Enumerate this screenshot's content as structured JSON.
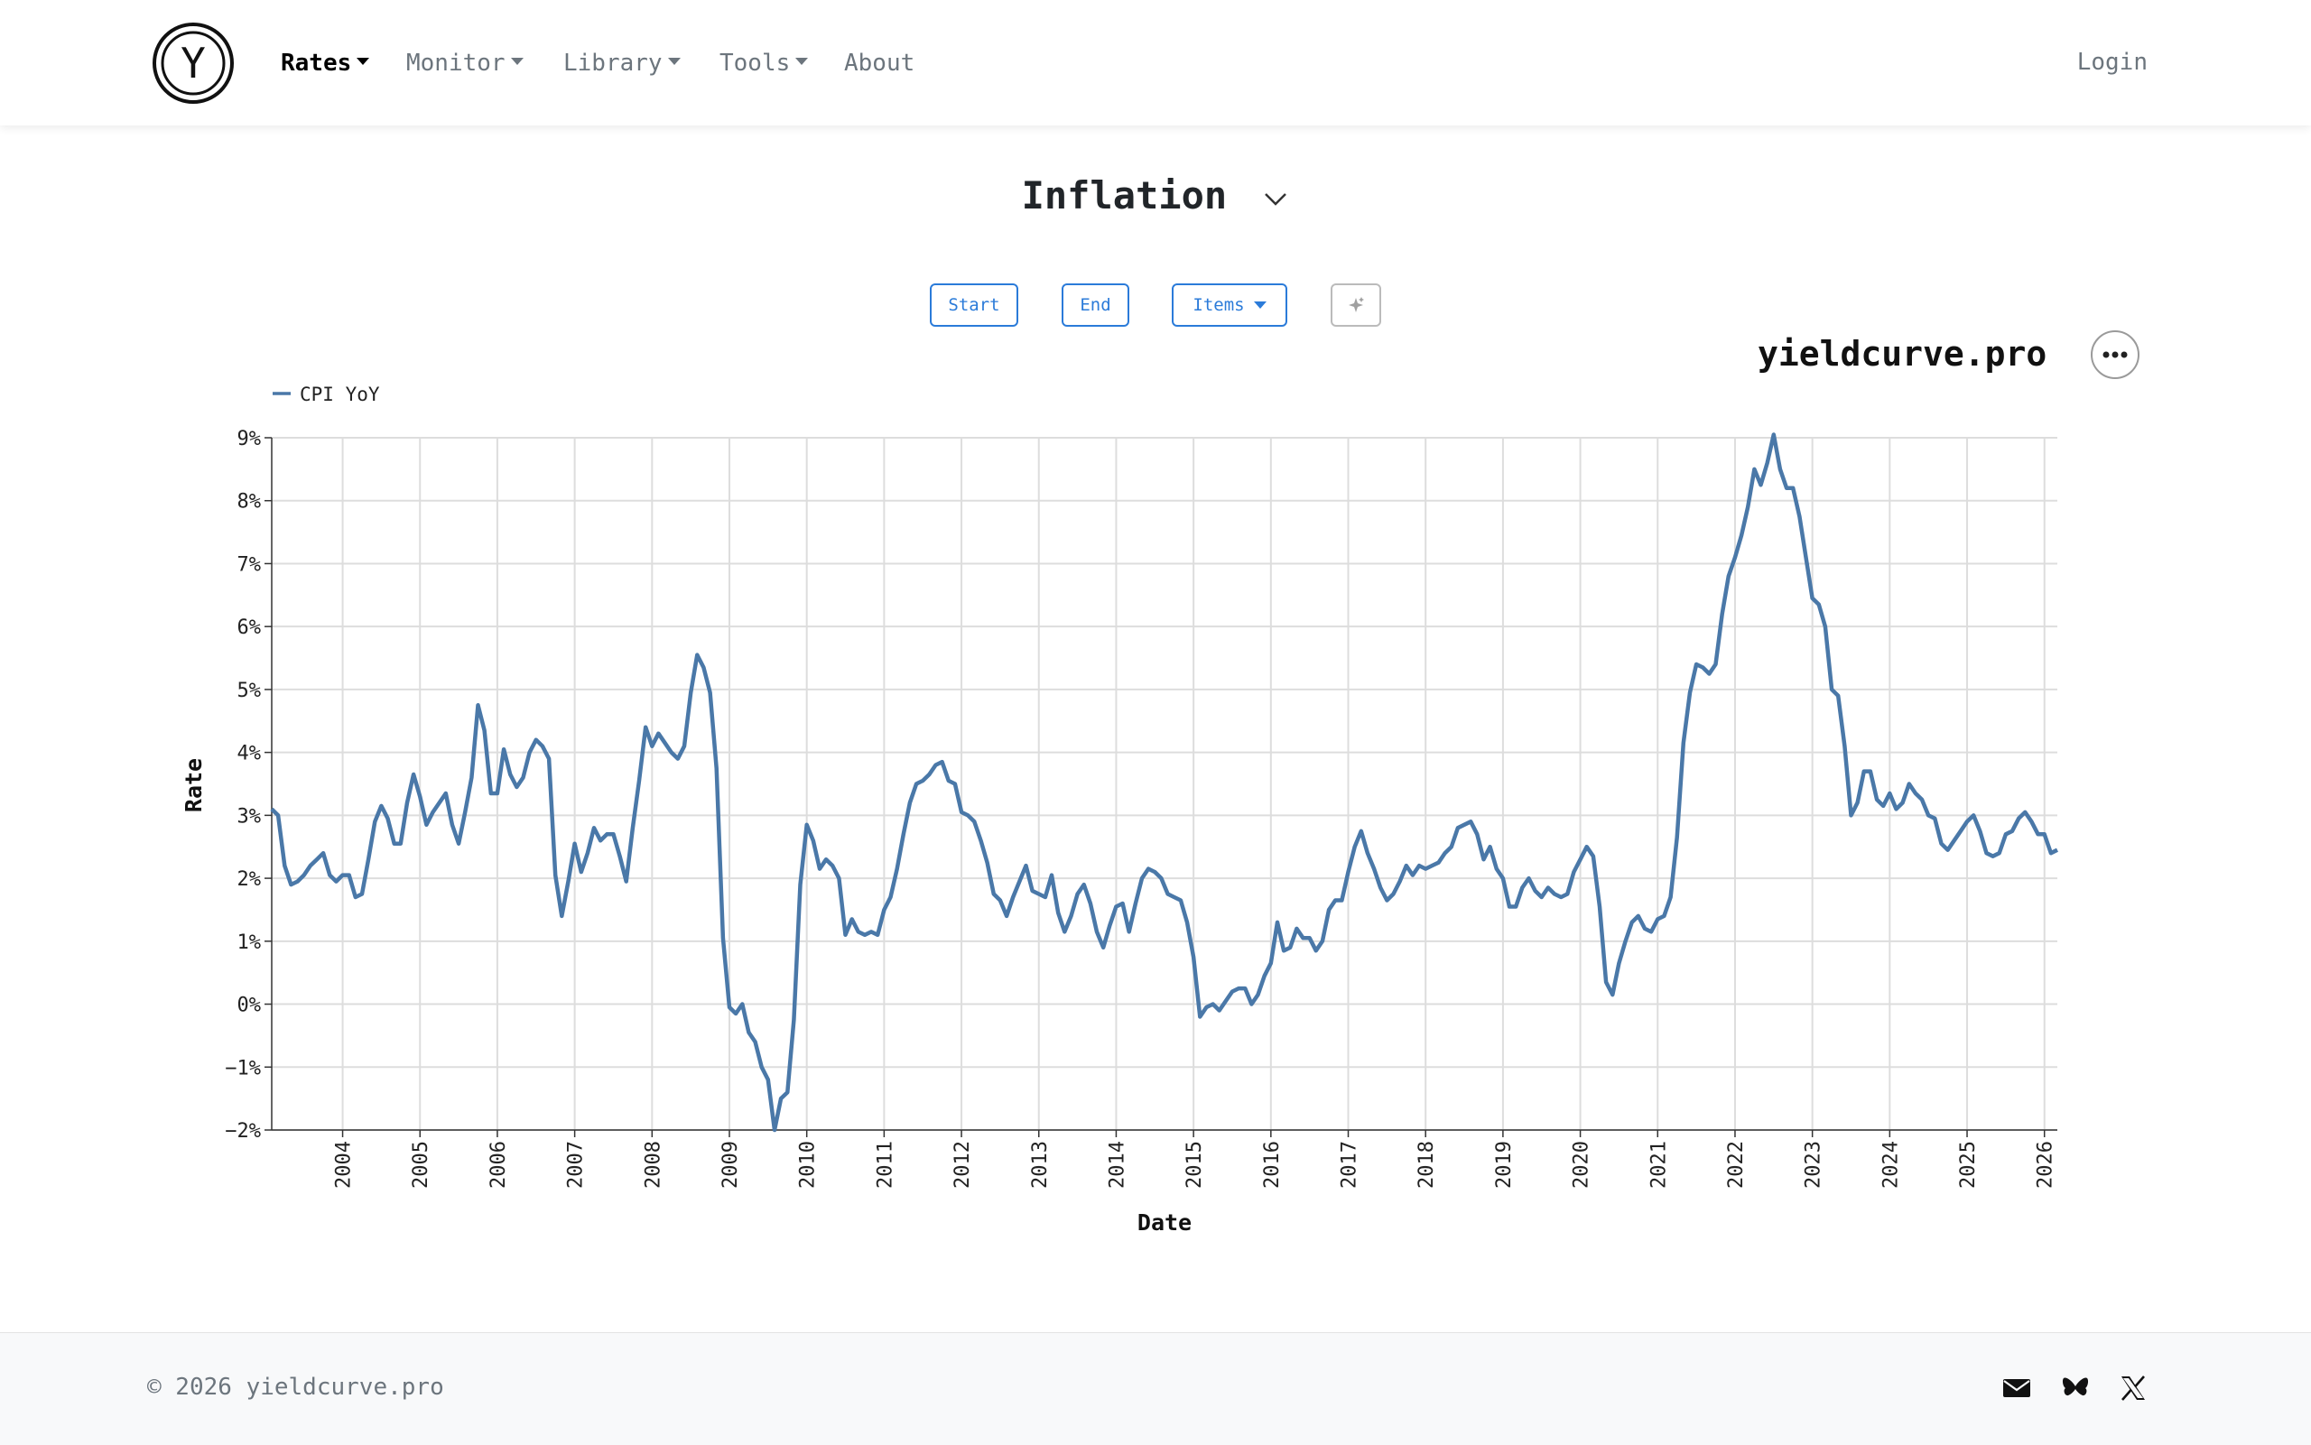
{
  "nav": {
    "items": [
      {
        "label": "Rates",
        "dropdown": true,
        "active": true
      },
      {
        "label": "Monitor",
        "dropdown": true,
        "active": false
      },
      {
        "label": "Library",
        "dropdown": true,
        "active": false
      },
      {
        "label": "Tools",
        "dropdown": true,
        "active": false
      },
      {
        "label": "About",
        "dropdown": false,
        "active": false
      }
    ],
    "login_label": "Login",
    "logo_letter": "Y"
  },
  "page": {
    "title": "Inflation",
    "buttons": {
      "start": "Start",
      "end": "End",
      "items": "Items"
    },
    "brand": "yieldcurve.pro"
  },
  "icons": {
    "logo": "y-circle-logo",
    "title_toggle": "chevron-down-icon",
    "sparkle": "sparkle-icon",
    "more": "more-horizontal-icon",
    "mail": "mail-icon",
    "bluesky": "butterfly-icon",
    "x": "x-logo-icon"
  },
  "colors": {
    "accent": "#2b7bd9",
    "series": "#4a78a8",
    "grid": "#dddddd"
  },
  "footer": {
    "copyright": "© 2026 yieldcurve.pro"
  },
  "chart_data": {
    "type": "line",
    "xlabel": "Date",
    "ylabel": "Rate",
    "y_tick_labels": [
      "−2%",
      "−1%",
      "0%",
      "1%",
      "2%",
      "3%",
      "4%",
      "5%",
      "6%",
      "7%",
      "8%",
      "9%"
    ],
    "x_tick_labels": [
      "2004",
      "2005",
      "2006",
      "2007",
      "2008",
      "2009",
      "2010",
      "2011",
      "2012",
      "2013",
      "2014",
      "2015",
      "2016",
      "2017",
      "2018",
      "2019",
      "2020",
      "2021",
      "2022",
      "2023",
      "2024",
      "2025",
      "2026"
    ],
    "xlim": [
      "2003-02",
      "2026-03"
    ],
    "ylim": [
      -2,
      9
    ],
    "grid": true,
    "legend_position": "top-left",
    "series": [
      {
        "name": "CPI YoY",
        "color": "#4a78a8",
        "x": [
          "2003-02",
          "2003-03",
          "2003-04",
          "2003-05",
          "2003-06",
          "2003-07",
          "2003-08",
          "2003-09",
          "2003-10",
          "2003-11",
          "2003-12",
          "2004-01",
          "2004-02",
          "2004-03",
          "2004-04",
          "2004-05",
          "2004-06",
          "2004-07",
          "2004-08",
          "2004-09",
          "2004-10",
          "2004-11",
          "2004-12",
          "2005-01",
          "2005-02",
          "2005-03",
          "2005-04",
          "2005-05",
          "2005-06",
          "2005-07",
          "2005-08",
          "2005-09",
          "2005-10",
          "2005-11",
          "2005-12",
          "2006-01",
          "2006-02",
          "2006-03",
          "2006-04",
          "2006-05",
          "2006-06",
          "2006-07",
          "2006-08",
          "2006-09",
          "2006-10",
          "2006-11",
          "2006-12",
          "2007-01",
          "2007-02",
          "2007-03",
          "2007-04",
          "2007-05",
          "2007-06",
          "2007-07",
          "2007-08",
          "2007-09",
          "2007-10",
          "2007-11",
          "2007-12",
          "2008-01",
          "2008-02",
          "2008-03",
          "2008-04",
          "2008-05",
          "2008-06",
          "2008-07",
          "2008-08",
          "2008-09",
          "2008-10",
          "2008-11",
          "2008-12",
          "2009-01",
          "2009-02",
          "2009-03",
          "2009-04",
          "2009-05",
          "2009-06",
          "2009-07",
          "2009-08",
          "2009-09",
          "2009-10",
          "2009-11",
          "2009-12",
          "2010-01",
          "2010-02",
          "2010-03",
          "2010-04",
          "2010-05",
          "2010-06",
          "2010-07",
          "2010-08",
          "2010-09",
          "2010-10",
          "2010-11",
          "2010-12",
          "2011-01",
          "2011-02",
          "2011-03",
          "2011-04",
          "2011-05",
          "2011-06",
          "2011-07",
          "2011-08",
          "2011-09",
          "2011-10",
          "2011-11",
          "2011-12",
          "2012-01",
          "2012-02",
          "2012-03",
          "2012-04",
          "2012-05",
          "2012-06",
          "2012-07",
          "2012-08",
          "2012-09",
          "2012-10",
          "2012-11",
          "2012-12",
          "2013-01",
          "2013-02",
          "2013-03",
          "2013-04",
          "2013-05",
          "2013-06",
          "2013-07",
          "2013-08",
          "2013-09",
          "2013-10",
          "2013-11",
          "2013-12",
          "2014-01",
          "2014-02",
          "2014-03",
          "2014-04",
          "2014-05",
          "2014-06",
          "2014-07",
          "2014-08",
          "2014-09",
          "2014-10",
          "2014-11",
          "2014-12",
          "2015-01",
          "2015-02",
          "2015-03",
          "2015-04",
          "2015-05",
          "2015-06",
          "2015-07",
          "2015-08",
          "2015-09",
          "2015-10",
          "2015-11",
          "2015-12",
          "2016-01",
          "2016-02",
          "2016-03",
          "2016-04",
          "2016-05",
          "2016-06",
          "2016-07",
          "2016-08",
          "2016-09",
          "2016-10",
          "2016-11",
          "2016-12",
          "2017-01",
          "2017-02",
          "2017-03",
          "2017-04",
          "2017-05",
          "2017-06",
          "2017-07",
          "2017-08",
          "2017-09",
          "2017-10",
          "2017-11",
          "2017-12",
          "2018-01",
          "2018-02",
          "2018-03",
          "2018-04",
          "2018-05",
          "2018-06",
          "2018-07",
          "2018-08",
          "2018-09",
          "2018-10",
          "2018-11",
          "2018-12",
          "2019-01",
          "2019-02",
          "2019-03",
          "2019-04",
          "2019-05",
          "2019-06",
          "2019-07",
          "2019-08",
          "2019-09",
          "2019-10",
          "2019-11",
          "2019-12",
          "2020-01",
          "2020-02",
          "2020-03",
          "2020-04",
          "2020-05",
          "2020-06",
          "2020-07",
          "2020-08",
          "2020-09",
          "2020-10",
          "2020-11",
          "2020-12",
          "2021-01",
          "2021-02",
          "2021-03",
          "2021-04",
          "2021-05",
          "2021-06",
          "2021-07",
          "2021-08",
          "2021-09",
          "2021-10",
          "2021-11",
          "2021-12",
          "2022-01",
          "2022-02",
          "2022-03",
          "2022-04",
          "2022-05",
          "2022-06",
          "2022-07",
          "2022-08",
          "2022-09",
          "2022-10",
          "2022-11",
          "2022-12",
          "2023-01",
          "2023-02",
          "2023-03",
          "2023-04",
          "2023-05",
          "2023-06",
          "2023-07",
          "2023-08",
          "2023-09",
          "2023-10",
          "2023-11",
          "2023-12",
          "2024-01",
          "2024-02",
          "2024-03",
          "2024-04",
          "2024-05",
          "2024-06",
          "2024-07",
          "2024-08",
          "2024-09",
          "2024-10",
          "2024-11",
          "2024-12",
          "2025-01",
          "2025-02",
          "2025-03",
          "2025-04",
          "2025-05",
          "2025-06",
          "2025-07",
          "2025-08",
          "2025-09",
          "2025-10",
          "2025-11",
          "2025-12",
          "2026-01",
          "2026-02",
          "2026-03"
        ],
        "y": [
          3.1,
          3.0,
          2.2,
          1.9,
          1.95,
          2.05,
          2.2,
          2.3,
          2.4,
          2.05,
          1.95,
          2.05,
          2.05,
          1.7,
          1.75,
          2.3,
          2.9,
          3.15,
          2.95,
          2.55,
          2.55,
          3.2,
          3.65,
          3.3,
          2.85,
          3.05,
          3.2,
          3.35,
          2.85,
          2.55,
          3.05,
          3.6,
          4.75,
          4.35,
          3.35,
          3.35,
          4.05,
          3.65,
          3.45,
          3.6,
          4.0,
          4.2,
          4.1,
          3.9,
          2.05,
          1.4,
          1.95,
          2.55,
          2.1,
          2.4,
          2.8,
          2.6,
          2.7,
          2.7,
          2.35,
          1.95,
          2.8,
          3.55,
          4.4,
          4.1,
          4.3,
          4.15,
          4.0,
          3.9,
          4.1,
          4.95,
          5.55,
          5.35,
          4.95,
          3.75,
          1.05,
          -0.05,
          -0.15,
          0.0,
          -0.45,
          -0.6,
          -1.0,
          -1.2,
          -2.0,
          -1.5,
          -1.4,
          -0.25,
          1.9,
          2.85,
          2.6,
          2.15,
          2.3,
          2.2,
          2.0,
          1.1,
          1.35,
          1.15,
          1.1,
          1.15,
          1.1,
          1.5,
          1.7,
          2.15,
          2.7,
          3.2,
          3.5,
          3.55,
          3.65,
          3.8,
          3.85,
          3.55,
          3.5,
          3.05,
          3.0,
          2.9,
          2.6,
          2.25,
          1.75,
          1.65,
          1.4,
          1.7,
          1.95,
          2.2,
          1.8,
          1.75,
          1.7,
          2.05,
          1.45,
          1.15,
          1.4,
          1.75,
          1.9,
          1.6,
          1.15,
          0.9,
          1.25,
          1.55,
          1.6,
          1.15,
          1.6,
          2.0,
          2.15,
          2.1,
          2.0,
          1.75,
          1.7,
          1.65,
          1.3,
          0.75,
          -0.2,
          -0.05,
          0.0,
          -0.1,
          0.05,
          0.2,
          0.25,
          0.25,
          0.0,
          0.15,
          0.45,
          0.65,
          1.3,
          0.85,
          0.9,
          1.2,
          1.05,
          1.05,
          0.85,
          1.0,
          1.5,
          1.65,
          1.65,
          2.1,
          2.5,
          2.75,
          2.4,
          2.15,
          1.85,
          1.65,
          1.75,
          1.95,
          2.2,
          2.05,
          2.2,
          2.15,
          2.2,
          2.25,
          2.4,
          2.5,
          2.8,
          2.85,
          2.9,
          2.7,
          2.3,
          2.5,
          2.15,
          2.0,
          1.55,
          1.55,
          1.85,
          2.0,
          1.8,
          1.7,
          1.85,
          1.75,
          1.7,
          1.75,
          2.1,
          2.3,
          2.5,
          2.35,
          1.55,
          0.35,
          0.15,
          0.65,
          1.0,
          1.3,
          1.4,
          1.2,
          1.15,
          1.35,
          1.4,
          1.7,
          2.65,
          4.15,
          4.95,
          5.4,
          5.35,
          5.25,
          5.4,
          6.2,
          6.8,
          7.1,
          7.45,
          7.9,
          8.5,
          8.25,
          8.6,
          9.05,
          8.5,
          8.2,
          8.2,
          7.75,
          7.1,
          6.45,
          6.35,
          6.0,
          5.0,
          4.9,
          4.1,
          3.0,
          3.2,
          3.7,
          3.7,
          3.25,
          3.15,
          3.35,
          3.1,
          3.2,
          3.5,
          3.35,
          3.25,
          3.0,
          2.95,
          2.55,
          2.45,
          2.6,
          2.75,
          2.9,
          3.0,
          2.75,
          2.4,
          2.35,
          2.4,
          2.7,
          2.75,
          2.95,
          3.05,
          2.9,
          2.7,
          2.7,
          2.4,
          2.45
        ]
      }
    ]
  }
}
